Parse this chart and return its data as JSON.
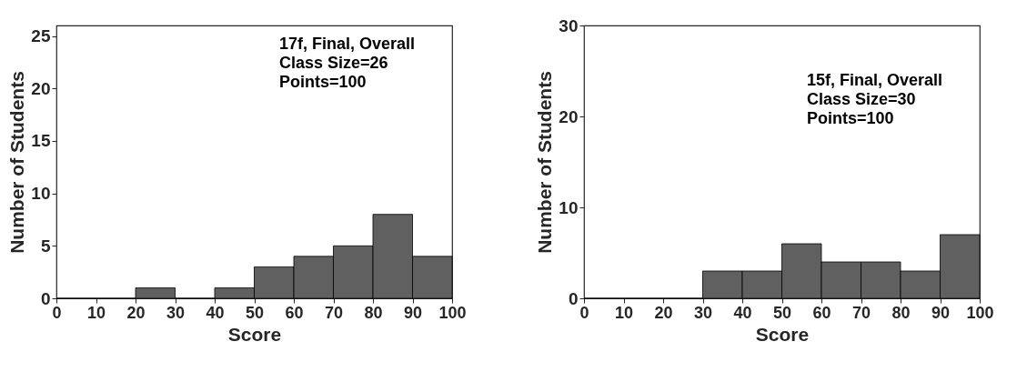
{
  "chart_data": [
    {
      "type": "histogram",
      "xlabel": "Score",
      "ylabel": "Number of Students",
      "bins": [
        0,
        10,
        20,
        30,
        40,
        50,
        60,
        70,
        80,
        90,
        100
      ],
      "values": [
        0,
        0,
        1,
        0,
        1,
        3,
        4,
        5,
        8,
        4
      ],
      "color": "#606060",
      "xlim": [
        0,
        100
      ],
      "xticks": [
        0,
        10,
        20,
        30,
        40,
        50,
        60,
        70,
        80,
        90,
        100
      ],
      "ylim": [
        0,
        26
      ],
      "yticks": [
        0,
        5,
        10,
        15,
        20,
        25
      ],
      "grid": false,
      "annotations": [
        "17f, Final, Overall",
        "Class Size=26",
        "Points=100"
      ]
    },
    {
      "type": "histogram",
      "xlabel": "Score",
      "ylabel": "Number of Students",
      "bins": [
        0,
        10,
        20,
        30,
        40,
        50,
        60,
        70,
        80,
        90,
        100
      ],
      "values": [
        0,
        0,
        0,
        3,
        3,
        6,
        4,
        4,
        3,
        7
      ],
      "color": "#606060",
      "xlim": [
        0,
        100
      ],
      "xticks": [
        0,
        10,
        20,
        30,
        40,
        50,
        60,
        70,
        80,
        90,
        100
      ],
      "ylim": [
        0,
        30
      ],
      "yticks": [
        0,
        10,
        20,
        30
      ],
      "grid": false,
      "annotations": [
        "15f, Final, Overall",
        "Class Size=30",
        "Points=100"
      ]
    }
  ]
}
